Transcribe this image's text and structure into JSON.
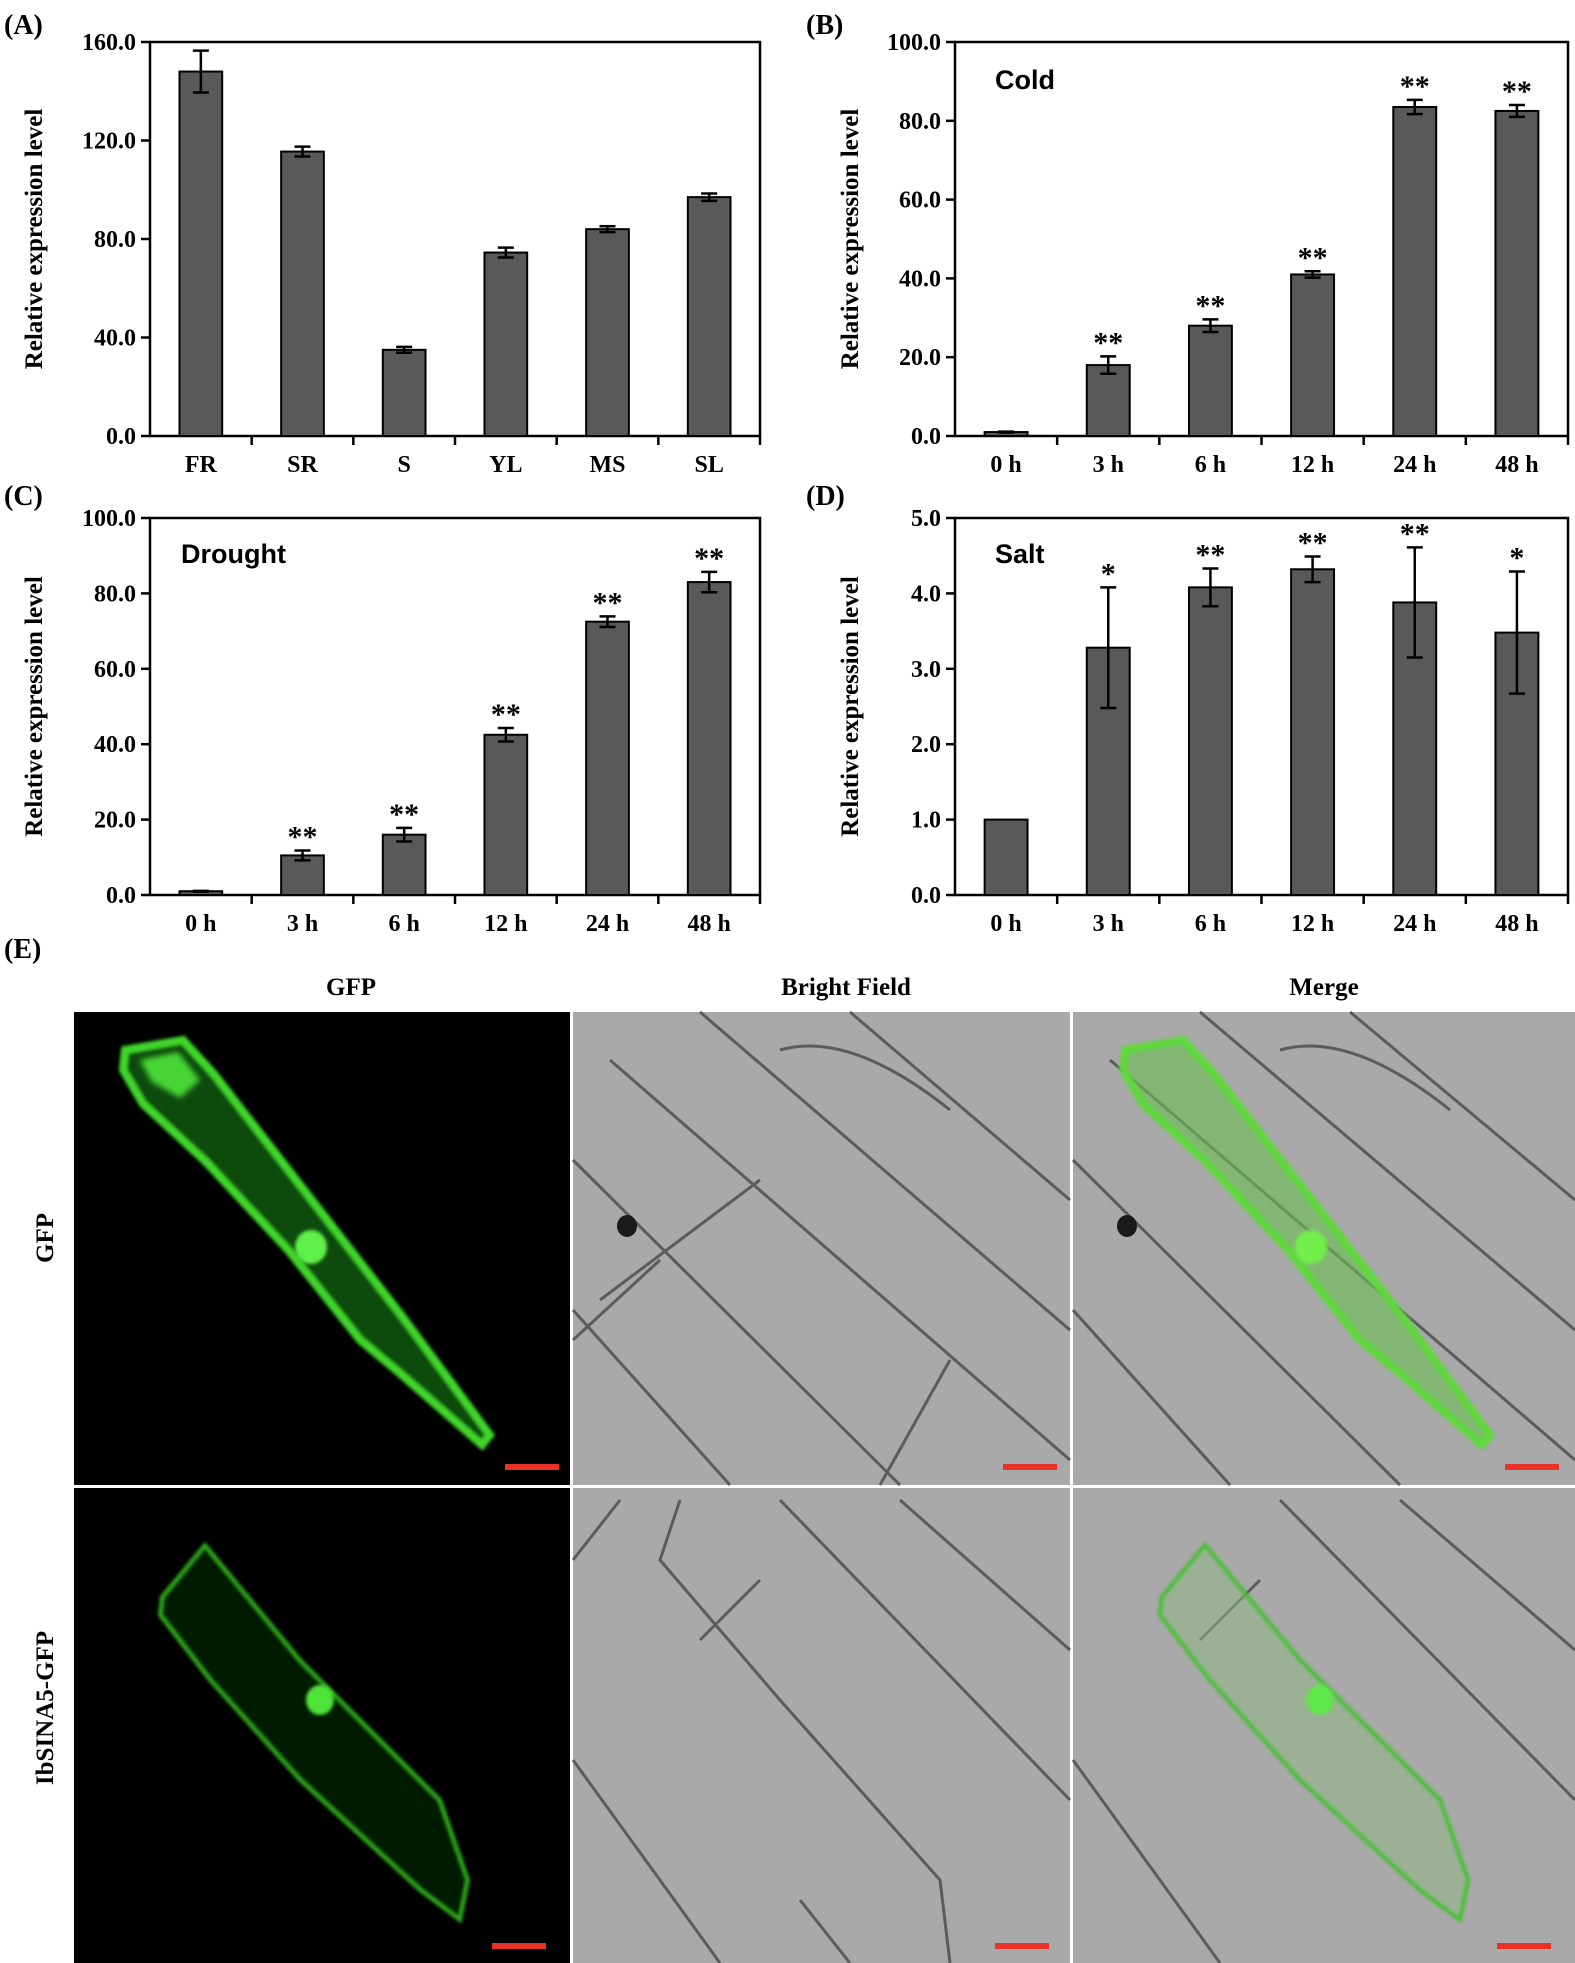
{
  "chart_data": [
    {
      "panel": "(A)",
      "type": "bar",
      "title": "",
      "condition": "",
      "categories": [
        "FR",
        "SR",
        "S",
        "YL",
        "MS",
        "SL"
      ],
      "values": [
        148.0,
        115.5,
        35.0,
        74.5,
        84.0,
        97.0
      ],
      "errors": [
        8.5,
        2.0,
        1.2,
        2.0,
        1.2,
        1.5
      ],
      "significance": [
        "",
        "",
        "",
        "",
        "",
        ""
      ],
      "ylabel": "Relative expression level",
      "xlabel": "",
      "ylim": [
        0,
        160
      ],
      "yticks": [
        "0.0",
        "40.0",
        "80.0",
        "120.0",
        "160.0"
      ],
      "ytick_values": [
        0,
        40,
        80,
        120,
        160
      ]
    },
    {
      "panel": "(B)",
      "type": "bar",
      "title": "",
      "condition": "Cold",
      "categories": [
        "0 h",
        "3 h",
        "6 h",
        "12 h",
        "24 h",
        "48 h"
      ],
      "values": [
        1.0,
        18.0,
        28.0,
        41.0,
        83.5,
        82.5
      ],
      "errors": [
        0.1,
        2.2,
        1.6,
        0.8,
        1.8,
        1.5
      ],
      "significance": [
        "",
        "**",
        "**",
        "**",
        "**",
        "**"
      ],
      "ylabel": "Relative expression level",
      "xlabel": "",
      "ylim": [
        0,
        100
      ],
      "yticks": [
        "0.0",
        "20.0",
        "40.0",
        "60.0",
        "80.0",
        "100.0"
      ],
      "ytick_values": [
        0,
        20,
        40,
        60,
        80,
        100
      ]
    },
    {
      "panel": "(C)",
      "type": "bar",
      "title": "",
      "condition": "Drought",
      "categories": [
        "0 h",
        "3 h",
        "6 h",
        "12 h",
        "24 h",
        "48 h"
      ],
      "values": [
        1.0,
        10.5,
        16.0,
        42.5,
        72.5,
        83.0
      ],
      "errors": [
        0.1,
        1.3,
        1.8,
        1.8,
        1.4,
        2.7
      ],
      "significance": [
        "",
        "**",
        "**",
        "**",
        "**",
        "**"
      ],
      "ylabel": "Relative expression level",
      "xlabel": "",
      "ylim": [
        0,
        100
      ],
      "yticks": [
        "0.0",
        "20.0",
        "40.0",
        "60.0",
        "80.0",
        "100.0"
      ],
      "ytick_values": [
        0,
        20,
        40,
        60,
        80,
        100
      ]
    },
    {
      "panel": "(D)",
      "type": "bar",
      "title": "",
      "condition": "Salt",
      "categories": [
        "0 h",
        "3 h",
        "6 h",
        "12 h",
        "24 h",
        "48 h"
      ],
      "values": [
        1.0,
        3.28,
        4.08,
        4.32,
        3.88,
        3.48
      ],
      "errors": [
        0.0,
        0.8,
        0.25,
        0.17,
        0.73,
        0.81
      ],
      "significance": [
        "",
        "*",
        "**",
        "**",
        "**",
        "*"
      ],
      "ylabel": "Relative expression level",
      "xlabel": "",
      "ylim": [
        0,
        5
      ],
      "yticks": [
        "0.0",
        "1.0",
        "2.0",
        "3.0",
        "4.0",
        "5.0"
      ],
      "ytick_values": [
        0,
        1,
        2,
        3,
        4,
        5
      ]
    }
  ],
  "microscopy": {
    "panel_label": "(E)",
    "columns": [
      "GFP",
      "Bright Field",
      "Merge"
    ],
    "rows": [
      "GFP",
      "IbSINA5-GFP"
    ]
  },
  "colors": {
    "bar_fill": "#595959",
    "bar_stroke": "#000000",
    "gfp_green": "#3fd62a",
    "scale_bar": "#e8322a",
    "brightfield_bg": "#a9a9a9"
  }
}
